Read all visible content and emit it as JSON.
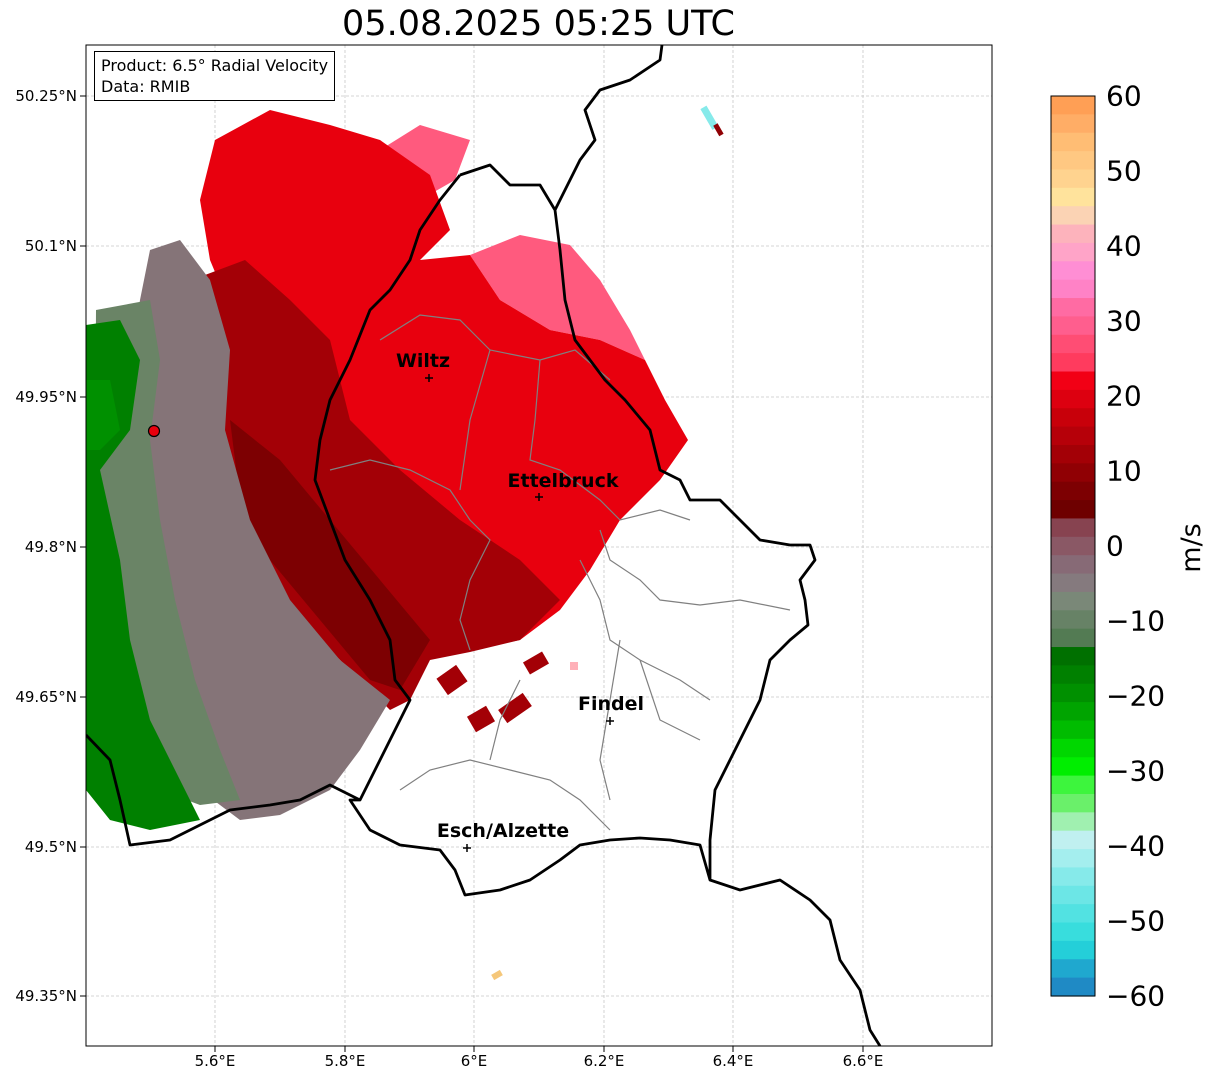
{
  "title": "05.08.2025 05:25 UTC",
  "info": {
    "product": "Product: 6.5° Radial Velocity",
    "data": "Data: RMIB"
  },
  "axes": {
    "lat_ticks": [
      "50.25°N",
      "50.1°N",
      "49.95°N",
      "49.8°N",
      "49.65°N",
      "49.5°N",
      "49.35°N"
    ],
    "lon_ticks": [
      "5.6°E",
      "5.8°E",
      "6°E",
      "6.2°E",
      "6.4°E",
      "6.6°E"
    ]
  },
  "cities": [
    {
      "name": "Wiltz"
    },
    {
      "name": "Ettelbruck"
    },
    {
      "name": "Findel"
    },
    {
      "name": "Esch/Alzette"
    }
  ],
  "colorbar": {
    "label": "m/s",
    "ticks": [
      "60",
      "50",
      "40",
      "30",
      "20",
      "10",
      "0",
      "−10",
      "−20",
      "−30",
      "−40",
      "−50",
      "−60"
    ],
    "range": [
      -60,
      60
    ],
    "colors_top_to_bottom": [
      "#ff9f55",
      "#ffad66",
      "#ffbd74",
      "#ffc882",
      "#ffd38f",
      "#ffe39c",
      "#fbd3b4",
      "#fdb3bc",
      "#ffa4c8",
      "#ff8ed4",
      "#ff82c6",
      "#ff6ba3",
      "#ff5e8e",
      "#ff4d74",
      "#ff3b5e",
      "#f20015",
      "#dd0010",
      "#c8000a",
      "#b60009",
      "#a30006",
      "#900004",
      "#7d0002",
      "#6e0000",
      "#874350",
      "#8a5865",
      "#876a76",
      "#857a7e",
      "#7a8878",
      "#678266",
      "#537b53",
      "#007000",
      "#008000",
      "#009000",
      "#00a400",
      "#00bc00",
      "#00d700",
      "#00ee00",
      "#3df53d",
      "#6af06a",
      "#a0f0b0",
      "#c0f0f0",
      "#a4eeee",
      "#86eaea",
      "#6ce6e6",
      "#52e2e2",
      "#38dddd",
      "#24cfd9",
      "#1fa8cf",
      "#1f8ac5"
    ]
  }
}
